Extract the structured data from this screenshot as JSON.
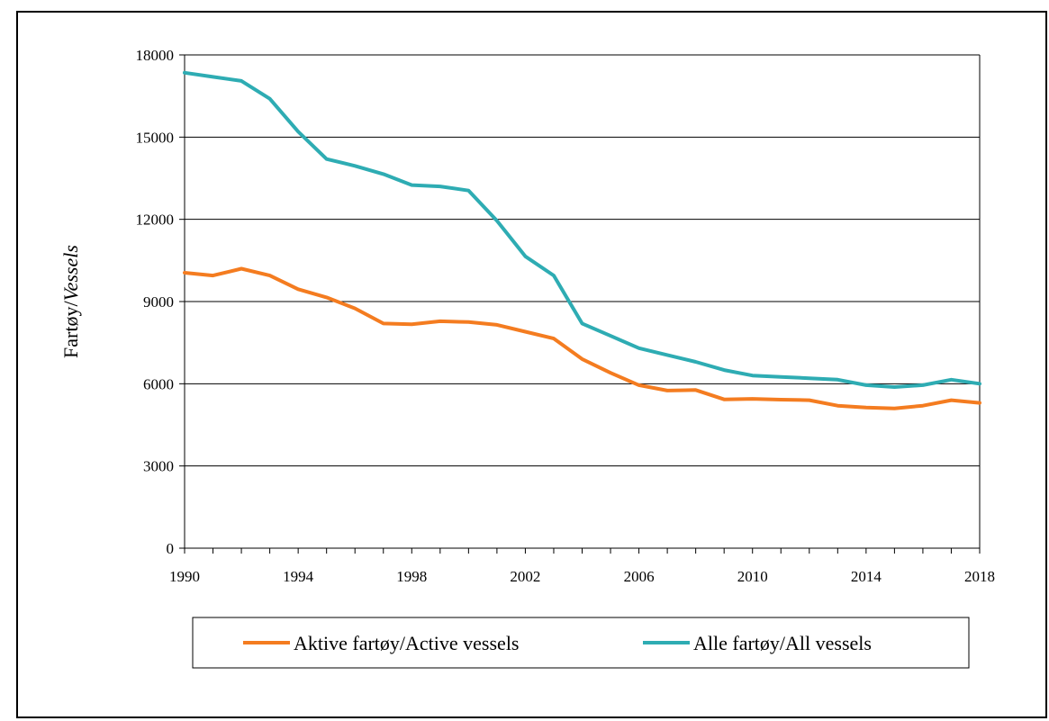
{
  "chart_data": {
    "type": "line",
    "title": "",
    "xlabel": "",
    "ylabel": "Fartøy/Vessels",
    "ylabel_parts": [
      "Fartøy/",
      "Vessels"
    ],
    "xlim": [
      1990,
      2018
    ],
    "ylim": [
      0,
      18000
    ],
    "x_ticks": [
      "1990",
      "1994",
      "1998",
      "2002",
      "2006",
      "2010",
      "2014",
      "2018"
    ],
    "y_ticks": [
      "0",
      "3000",
      "6000",
      "9000",
      "12000",
      "15000",
      "18000"
    ],
    "grid": "horizontal",
    "legend_position": "bottom",
    "x": [
      1990,
      1991,
      1992,
      1993,
      1994,
      1995,
      1996,
      1997,
      1998,
      1999,
      2000,
      2001,
      2002,
      2003,
      2004,
      2005,
      2006,
      2007,
      2008,
      2009,
      2010,
      2011,
      2012,
      2013,
      2014,
      2015,
      2016,
      2017,
      2018
    ],
    "series": [
      {
        "name": "Aktive fartøy/Active vessels",
        "color": "#F47C20",
        "values": [
          10050,
          9950,
          10200,
          9950,
          9450,
          9150,
          8750,
          8200,
          8170,
          8280,
          8250,
          8150,
          7900,
          7650,
          6900,
          6400,
          5950,
          5750,
          5770,
          5430,
          5450,
          5420,
          5400,
          5200,
          5130,
          5100,
          5200,
          5400,
          5300
        ]
      },
      {
        "name": "Alle fartøy/All vessels",
        "color": "#2EACB3",
        "values": [
          17350,
          17200,
          17050,
          16400,
          15200,
          14200,
          13950,
          13650,
          13250,
          13200,
          13050,
          11950,
          10650,
          9950,
          8200,
          7750,
          7300,
          7050,
          6800,
          6500,
          6300,
          6250,
          6200,
          6150,
          5950,
          5880,
          5950,
          6150,
          6000
        ]
      }
    ]
  }
}
